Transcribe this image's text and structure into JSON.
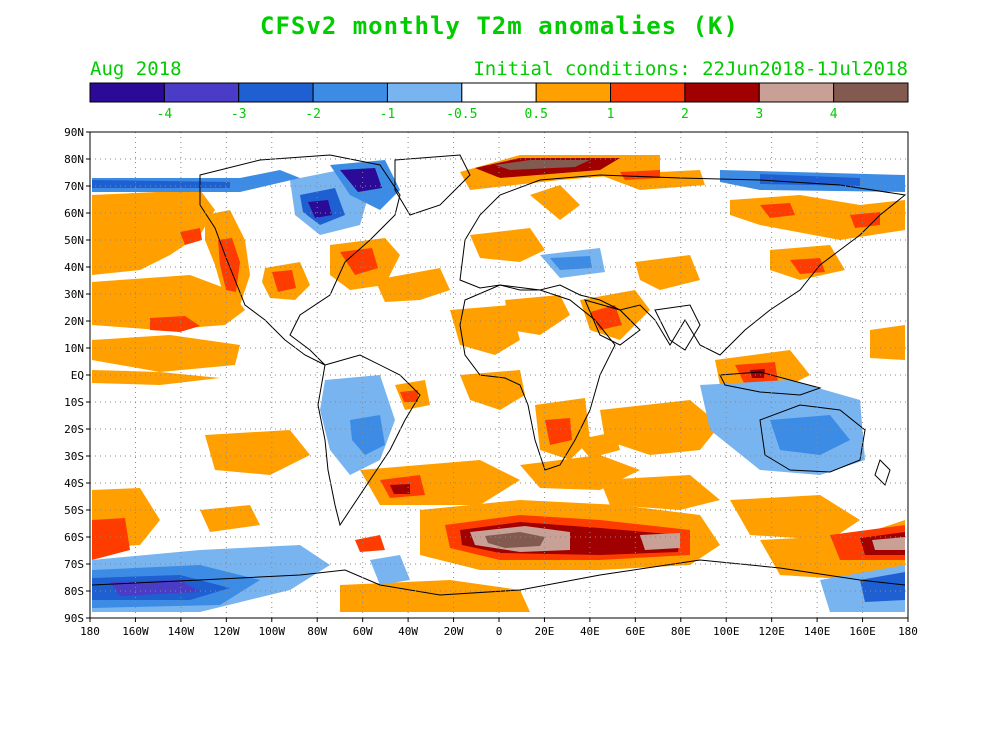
{
  "title": "CFSv2 monthly T2m anomalies (K)",
  "valid_month": "Aug 2018",
  "init_conditions": "Initial conditions: 22Jun2018-1Jul2018",
  "colorbar": {
    "colors": [
      "#2a0a96",
      "#4b3cc8",
      "#1e5fd2",
      "#3c8ce6",
      "#78b4f0",
      "#ffffff",
      "#ffa000",
      "#ff3c00",
      "#a00000",
      "#c8a096",
      "#825a50"
    ],
    "labels": [
      "-4",
      "-3",
      "-2",
      "-1",
      "-0.5",
      "0.5",
      "1",
      "2",
      "3",
      "4"
    ],
    "label_color": "#00cc00"
  },
  "map": {
    "lat_labels": [
      "90N",
      "80N",
      "70N",
      "60N",
      "50N",
      "40N",
      "30N",
      "20N",
      "10N",
      "EQ",
      "10S",
      "20S",
      "30S",
      "40S",
      "50S",
      "60S",
      "70S",
      "80S",
      "90S"
    ],
    "lon_labels": [
      "180",
      "160W",
      "140W",
      "120W",
      "100W",
      "80W",
      "60W",
      "40W",
      "20W",
      "0",
      "20E",
      "40E",
      "60E",
      "80E",
      "100E",
      "120E",
      "140E",
      "160E",
      "180"
    ],
    "lon_range": [
      -180,
      180
    ],
    "lat_range": [
      -90,
      90
    ],
    "grid": "dotted"
  }
}
